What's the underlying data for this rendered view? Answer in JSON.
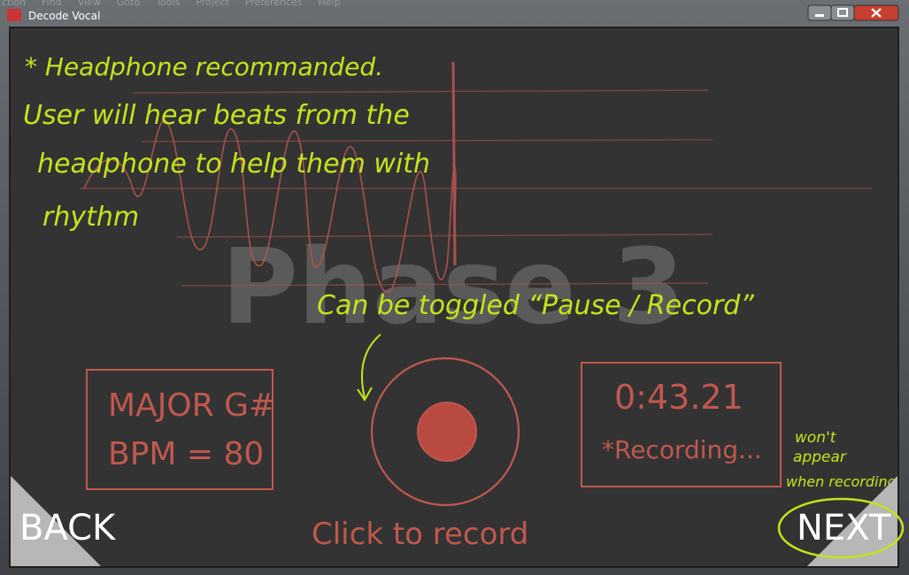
{
  "window": {
    "title": "Decode Vocal",
    "menu": [
      "ction",
      "Find",
      "View",
      "Goto",
      "Tools",
      "Project",
      "Preferences",
      "Help"
    ]
  },
  "watermark": "Phase 3",
  "annotations": {
    "headphone": "* Headphone recommanded.",
    "beats": [
      "User will hear beats from the",
      "headphone to help them with",
      "rhythm"
    ],
    "toggle": "Can be toggled “Pause / Record”",
    "wont_appear": [
      "won't",
      "appear",
      "when recording"
    ]
  },
  "key_panel": {
    "key": "MAJOR G#",
    "bpm": "BPM = 80"
  },
  "record": {
    "hint": "Click to record"
  },
  "timer_panel": {
    "time": "0:43.21",
    "status": "*Recording..."
  },
  "nav": {
    "back": "BACK",
    "next": "NEXT"
  }
}
